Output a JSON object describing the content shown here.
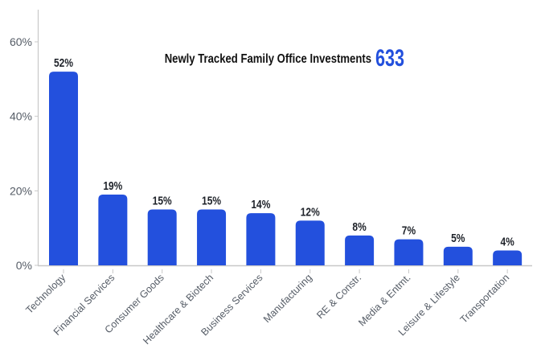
{
  "chart_data": {
    "type": "bar",
    "title": "Newly Tracked Family Office Investments",
    "headline_count": "633",
    "categories": [
      "Technology",
      "Financial Services",
      "Consumer Goods",
      "Healthcare & Biotech",
      "Business Services",
      "Manufacturing",
      "RE & Constr.",
      "Media & Entmt.",
      "Leisure & Lifestyle",
      "Transportation"
    ],
    "values": [
      52,
      19,
      15,
      15,
      14,
      12,
      8,
      7,
      5,
      4
    ],
    "value_labels": [
      "52%",
      "19%",
      "15%",
      "15%",
      "14%",
      "12%",
      "8%",
      "7%",
      "5%",
      "4%"
    ],
    "ylim": [
      0,
      65
    ],
    "yticks": [
      0,
      20,
      40,
      60
    ],
    "ytick_labels": [
      "0%",
      "20%",
      "40%",
      "60%"
    ],
    "xlabel": "",
    "ylabel": "",
    "grid": false,
    "bar_color": "#2350dd",
    "count_color": "#2350dd"
  }
}
